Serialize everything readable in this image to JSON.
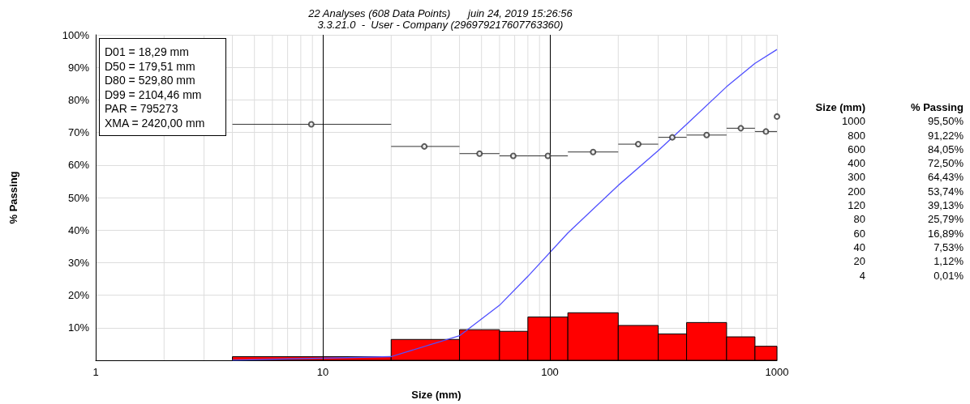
{
  "chart_data": [
    {
      "type": "histogram",
      "title": "22 Analyses (608 Data Points)      juin 24, 2019 15:26:56",
      "subtitle": "3.3.21.0  -  User - Company (296979217607763360)",
      "xlabel": "Size (mm)",
      "ylabel": "% Passing",
      "annotations": [
        "D01 = 18,29 mm",
        "D50 = 179,51 mm",
        "D80 = 529,80 mm",
        "D99 = 2104,46 mm",
        "PAR = 795273",
        "XMA = 2420,00 mm"
      ],
      "series": [
        {
          "color": "#ff0000",
          "bins": [
            4,
            20,
            40,
            60,
            80,
            120,
            200,
            300,
            400,
            600,
            800,
            1000
          ],
          "values": [
            1.1,
            6.4,
            9.4,
            8.9,
            13.3,
            14.6,
            10.7,
            8.1,
            11.6,
            7.2,
            4.3
          ]
        },
        {
          "type": "line",
          "color": "#5050ff",
          "x": [
            4,
            20,
            40,
            60,
            80,
            120,
            200,
            300,
            400,
            600,
            800,
            1000
          ],
          "values": [
            0.01,
            1.12,
            7.53,
            16.89,
            25.79,
            39.13,
            53.74,
            64.43,
            72.5,
            84.05,
            91.22,
            95.5
          ]
        },
        {
          "type": "scatter",
          "color": "#333333",
          "marker": "circle",
          "x": [
            8.9,
            28,
            49,
            69,
            98,
            155,
            245,
            346,
            490,
            693,
            894,
            1000
          ],
          "values": [
            72.5,
            65.7,
            63.5,
            62.8,
            62.8,
            64.0,
            66.4,
            68.5,
            69.2,
            71.3,
            70.3,
            74.9
          ],
          "xerrors": [
            [
              4,
              20
            ],
            [
              20,
              40
            ],
            [
              40,
              60
            ],
            [
              60,
              80
            ],
            [
              80,
              120
            ],
            [
              120,
              200
            ],
            [
              200,
              300
            ],
            [
              300,
              400
            ],
            [
              400,
              600
            ],
            [
              600,
              800
            ],
            [
              800,
              1000
            ],
            null
          ]
        }
      ],
      "log": "x",
      "xlim": [
        1,
        1000
      ],
      "xticks": [
        1,
        10,
        100,
        1000
      ],
      "ylim": [
        0,
        100
      ],
      "yticks": [
        {
          "value": 10,
          "label": "10%"
        },
        {
          "value": 20,
          "label": "20%"
        },
        {
          "value": 30,
          "label": "30%"
        },
        {
          "value": 40,
          "label": "40%"
        },
        {
          "value": 50,
          "label": "50%"
        },
        {
          "value": 60,
          "label": "60%"
        },
        {
          "value": 70,
          "label": "70%"
        },
        {
          "value": 80,
          "label": "80%"
        },
        {
          "value": 90,
          "label": "90%"
        },
        {
          "value": 100,
          "label": "100%"
        }
      ],
      "ref_lines": [
        {
          "axis": "x",
          "value": 10,
          "color": "#000000"
        },
        {
          "axis": "x",
          "value": 100,
          "color": "#000000"
        }
      ],
      "grid": true
    },
    {
      "type": "other",
      "annotations": [
        "Size (mm)",
        "% Passing",
        "1000",
        "95,50%",
        "800",
        "91,22%",
        "600",
        "84,05%",
        "400",
        "72,50%",
        "300",
        "64,43%",
        "200",
        "53,74%",
        "120",
        "39,13%",
        "80",
        "25,79%",
        "60",
        "16,89%",
        "40",
        "7,53%",
        "20",
        "1,12%",
        "4",
        "0,01%"
      ]
    }
  ]
}
